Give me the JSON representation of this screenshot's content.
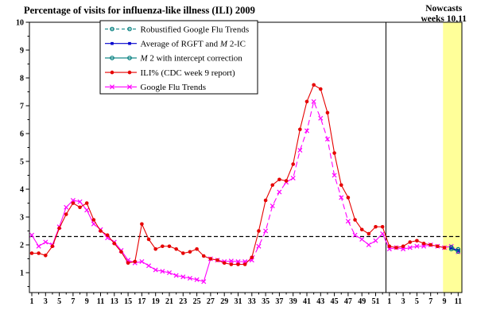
{
  "chart_data": {
    "type": "line",
    "title": "Percentage of visits for influenza-like illness (ILI) 2009",
    "x_axis": {
      "description": "CDC weeks: 2009 weeks 1-52 followed by 2010 weeks 1-11",
      "weeks_2009": 52,
      "weeks_2010": 11,
      "tick_labels_2009": [
        1,
        3,
        5,
        7,
        9,
        11,
        13,
        15,
        17,
        19,
        21,
        23,
        25,
        27,
        29,
        31,
        33,
        35,
        37,
        39,
        41,
        43,
        45,
        47,
        49,
        51
      ],
      "tick_labels_2010": [
        1,
        3,
        5,
        7,
        9,
        11
      ],
      "year_separator_after_week": 52
    },
    "y_axis": {
      "range": [
        0.3,
        10
      ],
      "tick_labels": [
        1,
        2,
        3,
        4,
        5,
        6,
        7,
        8,
        9,
        10
      ],
      "minor_step": 0.5
    },
    "threshold_line": {
      "value": 2.3,
      "style": "dashed",
      "color": "#000000"
    },
    "nowcast_band": {
      "label_line1": "Nowcasts",
      "label_line2": "weeks 10,11",
      "weeks": [
        10,
        11
      ],
      "color": "#ffff99"
    },
    "legend_position": "top-left-inside",
    "series": [
      {
        "key": "robustified_gft",
        "label": "Robustified Google Flu Trends",
        "label_parts": [
          [
            "Robustified Google Flu Trends",
            false
          ]
        ],
        "color": "#007d7d",
        "line": "dashed",
        "marker": "circle",
        "start_index": 62,
        "values": [
          1.92,
          1.84
        ]
      },
      {
        "key": "avg_rgft_m2ic",
        "label": "Average of RGFT and M 2-IC",
        "label_parts": [
          [
            "Average of RGFT and ",
            false
          ],
          [
            "M",
            true
          ],
          [
            " 2-IC",
            false
          ]
        ],
        "color": "#0000cd",
        "line": "solid",
        "marker": "square",
        "start_index": 62,
        "values": [
          1.88,
          1.8
        ]
      },
      {
        "key": "m2_intercept",
        "label": "M 2 with intercept correction",
        "label_parts": [
          [
            "M",
            true
          ],
          [
            " 2 with intercept correction",
            false
          ]
        ],
        "color": "#007d7d",
        "line": "solid",
        "marker": "circle",
        "start_index": 62,
        "values": [
          1.85,
          1.76
        ]
      },
      {
        "key": "ili_cdc",
        "label": "ILI% (CDC week 9 report)",
        "label_parts": [
          [
            "ILI% (CDC week 9 report)",
            false
          ]
        ],
        "color": "#e60000",
        "line": "solid",
        "marker": "dot",
        "start_index": 1,
        "values": [
          1.7,
          1.7,
          1.62,
          1.95,
          2.6,
          3.1,
          3.5,
          3.35,
          3.5,
          2.9,
          2.5,
          2.35,
          2.05,
          1.75,
          1.35,
          1.4,
          2.75,
          2.2,
          1.85,
          1.95,
          1.95,
          1.85,
          1.7,
          1.75,
          1.85,
          1.6,
          1.5,
          1.45,
          1.35,
          1.3,
          1.3,
          1.3,
          1.55,
          2.5,
          3.6,
          4.15,
          4.35,
          4.3,
          4.9,
          6.15,
          7.15,
          7.75,
          7.6,
          6.75,
          5.3,
          4.15,
          3.7,
          2.9,
          2.55,
          2.4,
          2.65,
          2.65,
          1.95,
          1.9,
          1.95,
          2.1,
          2.15,
          2.05,
          2.0,
          1.95,
          1.9
        ]
      },
      {
        "key": "gft",
        "label": "Google Flu Trends",
        "label_parts": [
          [
            "Google Flu Trends",
            false
          ]
        ],
        "color": "#ff00ff",
        "line": "solid",
        "marker": "x",
        "dash_segment": [
          33,
          52
        ],
        "start_index": 1,
        "values": [
          2.35,
          1.95,
          2.1,
          2.0,
          2.65,
          3.35,
          3.6,
          3.55,
          3.25,
          2.75,
          2.55,
          2.25,
          2.1,
          1.8,
          1.45,
          1.35,
          1.4,
          1.25,
          1.1,
          1.05,
          1.0,
          0.9,
          0.85,
          0.8,
          0.75,
          0.68,
          1.5,
          1.45,
          1.4,
          1.42,
          1.4,
          1.4,
          1.45,
          1.95,
          2.5,
          3.4,
          3.9,
          4.25,
          4.4,
          5.4,
          6.1,
          7.15,
          6.55,
          5.8,
          4.5,
          3.7,
          2.85,
          2.35,
          2.2,
          2.0,
          2.15,
          2.4,
          1.85,
          1.9,
          1.85,
          1.9,
          1.95,
          1.95,
          2.0,
          1.95,
          1.9,
          1.95,
          1.75
        ]
      }
    ]
  }
}
